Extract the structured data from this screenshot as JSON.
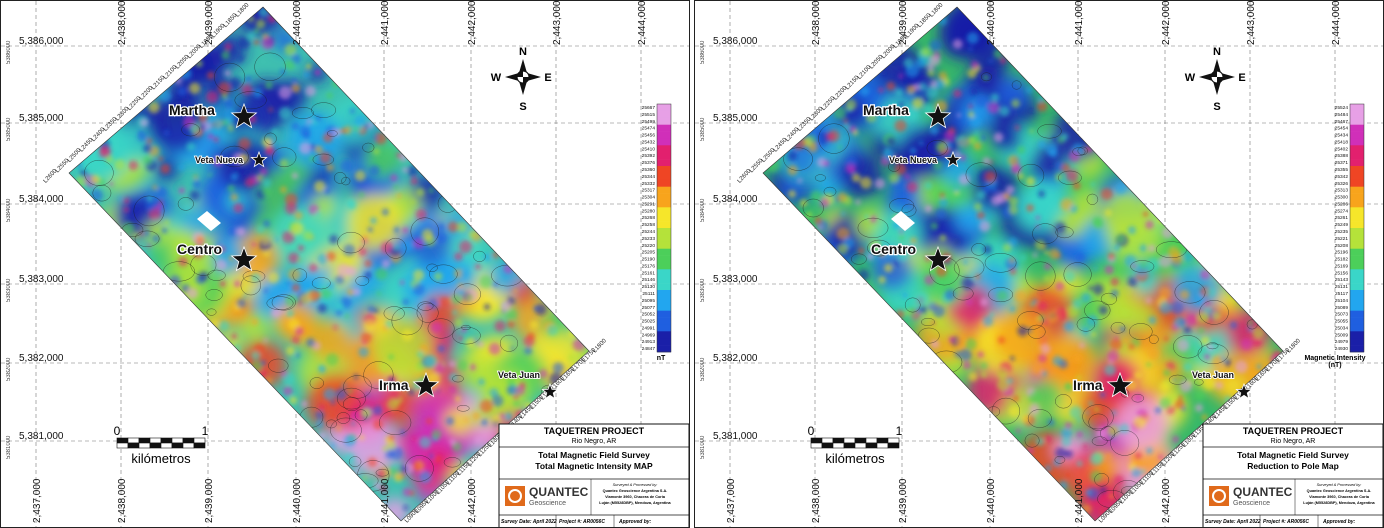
{
  "maps": [
    {
      "id": "tmi",
      "locations": [
        {
          "name": "Martha",
          "kind": "prospect"
        },
        {
          "name": "Veta Nueva",
          "kind": "vein"
        },
        {
          "name": "Centro",
          "kind": "prospect"
        },
        {
          "name": "Irma",
          "kind": "prospect"
        },
        {
          "name": "Veta Juan",
          "kind": "vein"
        }
      ],
      "legend": {
        "unit_label": "nT",
        "values": [
          "25667",
          "25515",
          "25499",
          "25474",
          "25456",
          "25432",
          "25410",
          "25392",
          "25376",
          "25360",
          "25344",
          "25332",
          "25317",
          "25304",
          "25291",
          "25280",
          "25268",
          "25258",
          "25244",
          "25233",
          "25220",
          "25205",
          "25190",
          "25176",
          "25161",
          "25146",
          "25130",
          "25111",
          "25095",
          "25077",
          "25052",
          "25025",
          "24991",
          "24969",
          "24913",
          "24847"
        ]
      },
      "titleblock": {
        "project": "TAQUETREN PROJECT",
        "location": "Rio Negro, AR",
        "title_line1": "Total Magnetic Field Survey",
        "title_line2": "Total Magnetic Intensity MAP",
        "logo_name": "QUANTEC",
        "logo_sub": "Geoscience",
        "surveyed_by": "Surveyed & Processed by:",
        "company": "Quantec Geoscience Argentina S.A.",
        "address1": "Viamonte 3960, Chacras de Coria",
        "address2": "Luján (M5528DBP), Mendoza, Argentina",
        "survey_date": "Survey Date: April 2022",
        "project_no": "Project #: AR0056C",
        "approved": "Approved by:"
      }
    },
    {
      "id": "rtp",
      "locations": [
        {
          "name": "Martha",
          "kind": "prospect"
        },
        {
          "name": "Veta Nueva",
          "kind": "vein"
        },
        {
          "name": "Centro",
          "kind": "prospect"
        },
        {
          "name": "Irma",
          "kind": "prospect"
        },
        {
          "name": "Veta Juan",
          "kind": "vein"
        }
      ],
      "legend": {
        "unit_label": "Magnetic Intensity\n(nT)",
        "values": [
          "25524",
          "25484",
          "25467",
          "25454",
          "25434",
          "25418",
          "25402",
          "25388",
          "25371",
          "25355",
          "25342",
          "25326",
          "25313",
          "25300",
          "25286",
          "25274",
          "25261",
          "25249",
          "25235",
          "25221",
          "25208",
          "25196",
          "25182",
          "25169",
          "25156",
          "25143",
          "25131",
          "25117",
          "25104",
          "25089",
          "25073",
          "25055",
          "25034",
          "25009",
          "24979",
          "24930"
        ]
      },
      "titleblock": {
        "project": "TAQUETREN PROJECT",
        "location": "Rio Negro, AR",
        "title_line1": "Total Magnetic Field Survey",
        "title_line2": "Reduction to Pole Map",
        "logo_name": "QUANTEC",
        "logo_sub": "Geoscience",
        "surveyed_by": "Surveyed & Processed by:",
        "company": "Quantec Geoscience Argentina S.A.",
        "address1": "Viamonte 3960, Chacras de Coria",
        "address2": "Luján (M5528DBP), Mendoza, Argentina",
        "survey_date": "Survey Date: April 2022",
        "project_no": "Project #: AR0056C",
        "approved": "Approved by:"
      }
    }
  ],
  "grid": {
    "eastings": [
      "2,437,000",
      "2,438,000",
      "2,439,000",
      "2,440,000",
      "2,441,000",
      "2,442,000",
      "2,443,000",
      "2,444,000"
    ],
    "northings": [
      "5,386,000",
      "5,385,000",
      "5,384,000",
      "5,383,000",
      "5,382,000",
      "5,381,000"
    ],
    "side_northings": [
      "5386000",
      "5385000",
      "5384000",
      "5383000",
      "5382000",
      "5381000"
    ]
  },
  "scalebar": {
    "label_start": "0",
    "label_end": "1",
    "unit": "kilómetros"
  },
  "north_arrow": {
    "n": "N",
    "s": "S",
    "e": "E",
    "w": "W"
  },
  "line_labels_nw": [
    "L2600",
    "L2550",
    "L2500",
    "L2450",
    "L2400",
    "L2350",
    "L2300",
    "L2250",
    "L2200",
    "L2150",
    "L2100",
    "L2050",
    "L2000",
    "L1950",
    "L1900",
    "L1850",
    "L1800"
  ],
  "line_labels_se": [
    "L1800",
    "L1750",
    "L1700",
    "L1650",
    "L1600",
    "L1550",
    "L1500",
    "L1450",
    "L1400",
    "L1350",
    "L1300",
    "L1250",
    "L1200",
    "L1150",
    "L1100",
    "L1050",
    "L1000",
    "L0950",
    "L0900"
  ],
  "colors": {
    "ramp": [
      "#1a1fa8",
      "#1f5fe0",
      "#22a6ef",
      "#3ad6c8",
      "#4ccf5a",
      "#b5e23a",
      "#f6e62a",
      "#f8a41c",
      "#ef4524",
      "#e2206e",
      "#d02fb9",
      "#e7a0e6"
    ],
    "star": "#111111",
    "frame": "#222222",
    "logo": "#e06a1b"
  }
}
